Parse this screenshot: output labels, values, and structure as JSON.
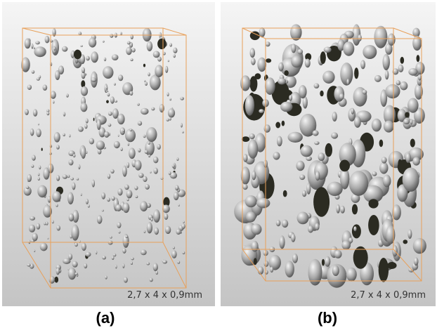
{
  "panels": [
    {
      "scale": "2,7 x 4 x 0,9mm",
      "label": "(a)"
    },
    {
      "scale": "2,7 x 4 x 0,9mm",
      "label": "(b)"
    }
  ]
}
